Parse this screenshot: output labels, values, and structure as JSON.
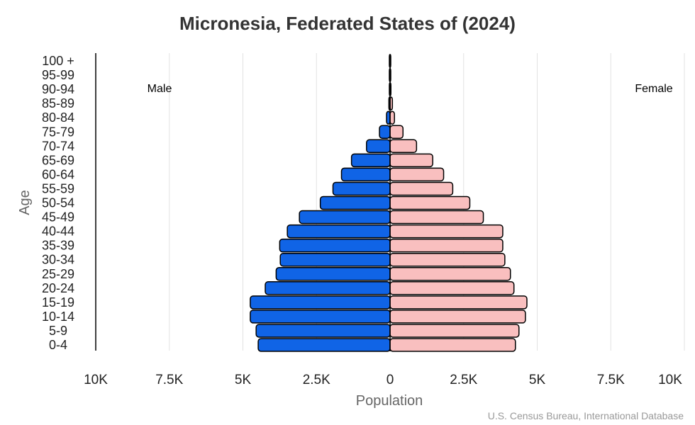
{
  "chart_data": {
    "type": "bar",
    "title": "Micronesia, Federated States of (2024)",
    "xlabel": "Population",
    "ylabel": "Age",
    "source": "U.S. Census Bureau, International Database",
    "xlim": [
      -10000,
      10000
    ],
    "x_ticks": [
      "10K",
      "7.5K",
      "5K",
      "2.5K",
      "0",
      "2.5K",
      "5K",
      "7.5K",
      "10K"
    ],
    "grid": true,
    "categories": [
      "0-4",
      "5-9",
      "10-14",
      "15-19",
      "20-24",
      "25-29",
      "30-34",
      "35-39",
      "40-44",
      "45-49",
      "50-54",
      "55-59",
      "60-64",
      "65-69",
      "70-74",
      "75-79",
      "80-84",
      "85-89",
      "90-94",
      "95-99",
      "100 +"
    ],
    "series": [
      {
        "name": "Male",
        "color": "#1064e6",
        "values": [
          4480,
          4550,
          4750,
          4750,
          4240,
          3870,
          3730,
          3750,
          3490,
          3080,
          2370,
          1940,
          1650,
          1310,
          800,
          360,
          120,
          40,
          20,
          10,
          0
        ]
      },
      {
        "name": "Female",
        "color": "#f9bfbf",
        "values": [
          4260,
          4380,
          4600,
          4650,
          4210,
          4090,
          3900,
          3830,
          3830,
          3170,
          2710,
          2130,
          1820,
          1450,
          900,
          440,
          150,
          80,
          30,
          10,
          0
        ]
      }
    ]
  }
}
